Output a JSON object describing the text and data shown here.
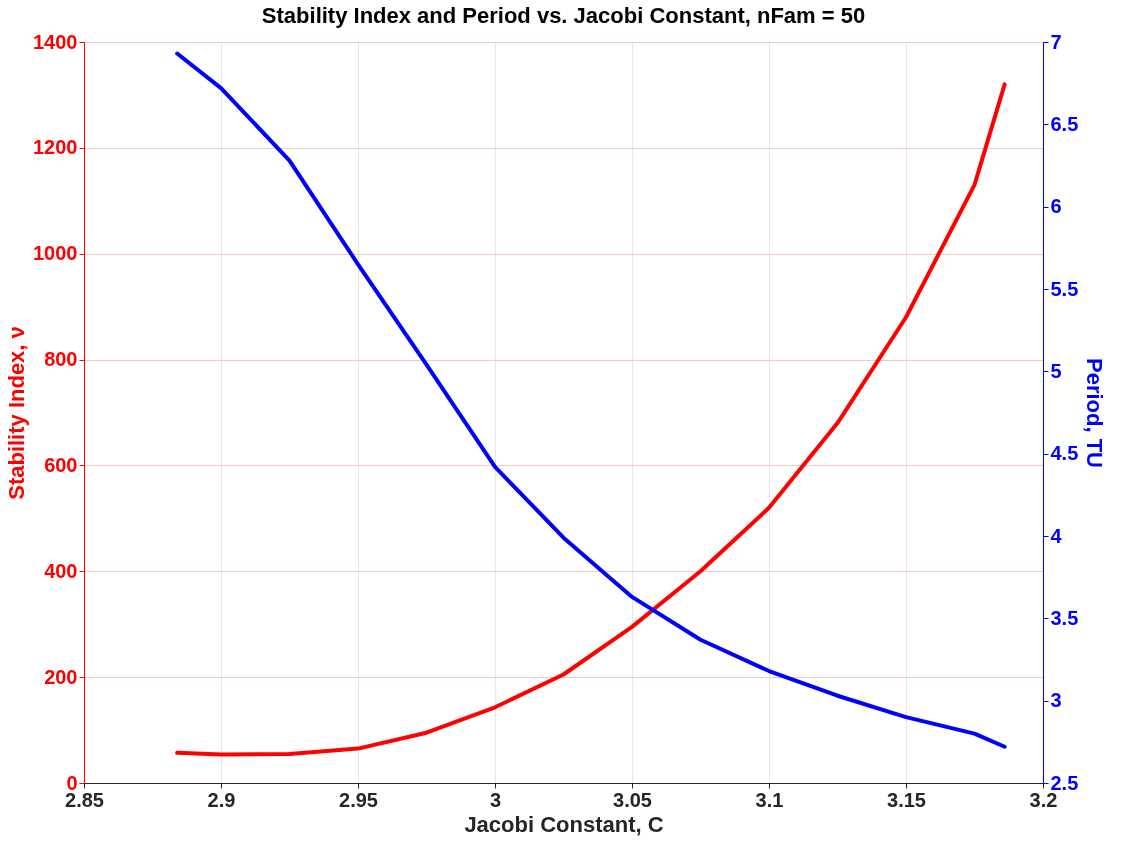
{
  "chart_data": {
    "type": "line",
    "title": "Stability Index and Period vs. Jacobi Constant, nFam = 50",
    "xlabel": "Jacobi Constant, C",
    "ylabel": "Stability Index, ν",
    "y2label": "Period, TU",
    "x": [
      2.884,
      2.9,
      2.925,
      2.95,
      2.975,
      3.0,
      3.025,
      3.05,
      3.075,
      3.1,
      3.125,
      3.15,
      3.175,
      3.186
    ],
    "series": [
      {
        "color": "#ff0000",
        "values": [
          57,
          54,
          55,
          65,
          95,
          143,
          205,
          295,
          400,
          520,
          680,
          880,
          1130,
          1320
        ]
      },
      {
        "color": "#0000ff",
        "axis": "y2",
        "values": [
          6.93,
          6.72,
          6.28,
          5.65,
          5.04,
          4.42,
          3.99,
          3.63,
          3.37,
          3.18,
          3.03,
          2.9,
          2.8,
          2.72
        ]
      }
    ],
    "xlim": [
      2.85,
      3.2
    ],
    "xticks": [
      2.85,
      2.9,
      2.95,
      3,
      3.05,
      3.1,
      3.15,
      3.2
    ],
    "ylim": [
      0,
      1400
    ],
    "yticks": [
      0,
      200,
      400,
      600,
      800,
      1000,
      1200,
      1400
    ],
    "y2lim": [
      2.5,
      7
    ],
    "y2ticks": [
      2.5,
      3,
      3.5,
      4,
      4.5,
      5,
      5.5,
      6,
      6.5,
      7
    ],
    "grid": true,
    "legend": false,
    "marker": "none",
    "line_style": "solid"
  }
}
